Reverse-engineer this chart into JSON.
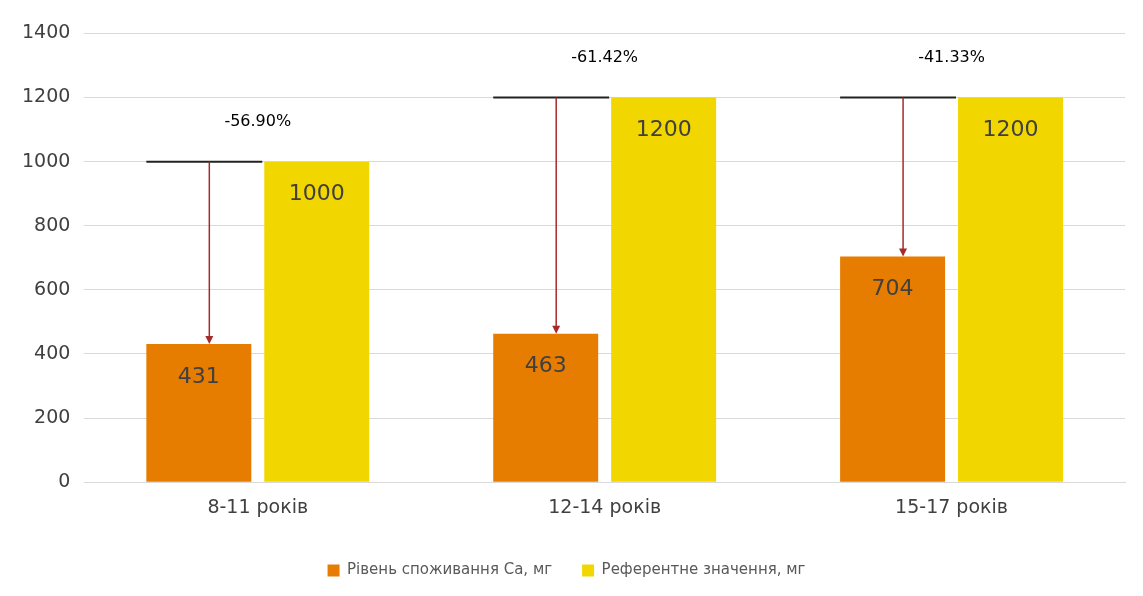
{
  "chart_data": {
    "type": "bar",
    "categories": [
      "8-11 років",
      "12-14 років",
      "15-17 років"
    ],
    "series": [
      {
        "name": "Рівень споживання Са, мг",
        "color": "#e67c00",
        "values": [
          431,
          463,
          704
        ]
      },
      {
        "name": "Референтне значення, мг",
        "color": "#f2d600",
        "values": [
          1000,
          1200,
          1200
        ]
      }
    ],
    "ylim": [
      0,
      1400
    ],
    "yticks": [
      0,
      200,
      400,
      600,
      800,
      1000,
      1200,
      1400
    ],
    "grid": "y",
    "legend": "bottom",
    "data_labels": true,
    "annotations": [
      "-56.90%",
      "-61.42%",
      "-41.33%"
    ]
  }
}
